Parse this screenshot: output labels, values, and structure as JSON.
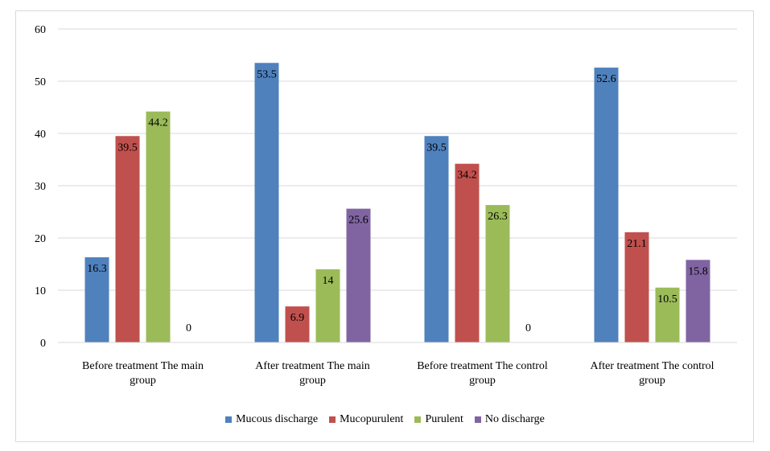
{
  "chart_data": {
    "type": "bar",
    "title": "",
    "xlabel": "",
    "ylabel": "",
    "ylim": [
      0,
      60
    ],
    "yticks": [
      0,
      10,
      20,
      30,
      40,
      50,
      60
    ],
    "grid": true,
    "legend_position": "bottom",
    "categories": [
      [
        "Before treatment The main",
        "group"
      ],
      [
        "After treatment The main",
        "group"
      ],
      [
        "Before treatment The control",
        "group"
      ],
      [
        "After treatment The control",
        "group"
      ]
    ],
    "series": [
      {
        "name": "Mucous discharge",
        "color": "#4F81BD",
        "values": [
          16.3,
          53.5,
          39.5,
          52.6
        ]
      },
      {
        "name": "Mucopurulent",
        "color": "#C0504D",
        "values": [
          39.5,
          6.9,
          34.2,
          21.1
        ]
      },
      {
        "name": "Purulent",
        "color": "#9BBB59",
        "values": [
          44.2,
          14,
          26.3,
          10.5
        ]
      },
      {
        "name": "No discharge",
        "color": "#8064A2",
        "values": [
          0,
          25.6,
          0,
          15.8
        ]
      }
    ]
  }
}
